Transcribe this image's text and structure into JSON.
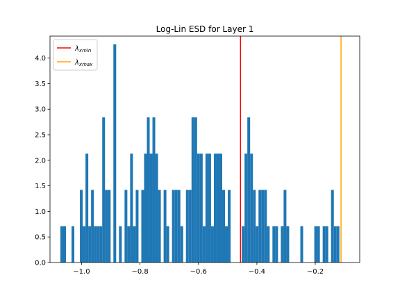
{
  "chart_data": {
    "type": "bar",
    "title": "Log-Lin ESD for Layer 1",
    "xlabel": "",
    "ylabel": "",
    "xlim": [
      -1.108,
      -0.048
    ],
    "ylim": [
      0,
      4.43
    ],
    "xticks": [
      -1.0,
      -0.8,
      -0.6,
      -0.4,
      -0.2
    ],
    "xtick_labels": [
      "−1.0",
      "−0.8",
      "−0.6",
      "−0.4",
      "−0.2"
    ],
    "yticks": [
      0.0,
      0.5,
      1.0,
      1.5,
      2.0,
      2.5,
      3.0,
      3.5,
      4.0
    ],
    "ytick_labels": [
      "0.0",
      "0.5",
      "1.0",
      "1.5",
      "2.0",
      "2.5",
      "3.0",
      "3.5",
      "4.0"
    ],
    "bar_color": "#1f77b4",
    "bin_start": -1.0725,
    "bin_width": 0.00955,
    "bar_heights": [
      0.71,
      0.71,
      0,
      0,
      0.71,
      0,
      0,
      1.42,
      0.71,
      2.13,
      0.71,
      1.42,
      0.71,
      0.71,
      0.71,
      2.84,
      1.42,
      1.42,
      0,
      4.27,
      0,
      0.71,
      0,
      1.42,
      0.71,
      2.13,
      0.71,
      1.42,
      0,
      1.42,
      2.13,
      2.84,
      2.13,
      2.84,
      2.13,
      1.42,
      0,
      1.42,
      0.71,
      0,
      1.42,
      1.42,
      1.42,
      0.71,
      0,
      1.42,
      1.42,
      2.84,
      2.84,
      2.13,
      2.13,
      0.71,
      2.13,
      2.13,
      0.71,
      2.13,
      2.13,
      2.13,
      1.42,
      0.71,
      1.42,
      0,
      0,
      0,
      0,
      0.71,
      2.13,
      2.84,
      2.13,
      1.42,
      0.71,
      1.42,
      1.42,
      1.42,
      0.71,
      0,
      0.71,
      0.71,
      0,
      0.71,
      1.42,
      0.71,
      0,
      0,
      0,
      0,
      0.71,
      0,
      0,
      0,
      0,
      0.71,
      0.71,
      0,
      0.71,
      0.71,
      0,
      1.42,
      0.71,
      0.71
    ],
    "vlines": [
      {
        "label": "xmin",
        "x": -0.456,
        "color": "#ff0000"
      },
      {
        "label": "xmax",
        "x": -0.112,
        "color": "#ffa500"
      }
    ],
    "legend": {
      "position": "top-left",
      "entries": [
        {
          "symbol": "λ",
          "subscript": "xmin",
          "color": "#ff0000"
        },
        {
          "symbol": "λ",
          "subscript": "xmax",
          "color": "#ffa500"
        }
      ]
    }
  }
}
